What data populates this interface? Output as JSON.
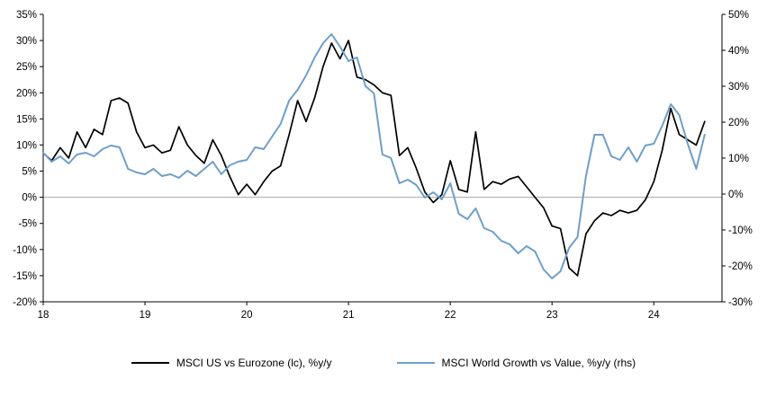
{
  "chart_data": {
    "type": "line",
    "title": "",
    "x_label": "",
    "grid": false,
    "legend_position": "bottom",
    "axis_color": "#000000",
    "zero_line_color": "#a6a6a6",
    "x_range": [
      2018,
      2024.67
    ],
    "x": [
      2018.0,
      2018.083,
      2018.167,
      2018.25,
      2018.333,
      2018.417,
      2018.5,
      2018.583,
      2018.667,
      2018.75,
      2018.833,
      2018.917,
      2019.0,
      2019.083,
      2019.167,
      2019.25,
      2019.333,
      2019.417,
      2019.5,
      2019.583,
      2019.667,
      2019.75,
      2019.833,
      2019.917,
      2020.0,
      2020.083,
      2020.167,
      2020.25,
      2020.333,
      2020.417,
      2020.5,
      2020.583,
      2020.667,
      2020.75,
      2020.833,
      2020.917,
      2021.0,
      2021.083,
      2021.167,
      2021.25,
      2021.333,
      2021.417,
      2021.5,
      2021.583,
      2021.667,
      2021.75,
      2021.833,
      2021.917,
      2022.0,
      2022.083,
      2022.167,
      2022.25,
      2022.333,
      2022.417,
      2022.5,
      2022.583,
      2022.667,
      2022.75,
      2022.833,
      2022.917,
      2023.0,
      2023.083,
      2023.167,
      2023.25,
      2023.333,
      2023.417,
      2023.5,
      2023.583,
      2023.667,
      2023.75,
      2023.833,
      2023.917,
      2024.0,
      2024.083,
      2024.167,
      2024.25,
      2024.333,
      2024.417,
      2024.5
    ],
    "series": [
      {
        "name": "MSCI US vs Eurozone (lc), %y/y",
        "axis": "left",
        "color": "#000000",
        "width": 1.7,
        "values": [
          8.5,
          7.0,
          9.5,
          7.5,
          12.5,
          9.5,
          13.0,
          12.0,
          18.5,
          19.0,
          18.0,
          12.5,
          9.5,
          10.0,
          8.5,
          9.0,
          13.5,
          10.0,
          8.0,
          6.5,
          11.0,
          8.0,
          4.0,
          0.5,
          2.5,
          0.5,
          3.0,
          5.0,
          6.0,
          12.0,
          18.5,
          14.5,
          19.0,
          25.0,
          29.5,
          26.5,
          30.0,
          23.0,
          22.5,
          21.5,
          20.0,
          19.5,
          8.0,
          9.5,
          5.5,
          1.0,
          -1.0,
          0.5,
          7.0,
          1.5,
          1.0,
          12.5,
          1.5,
          3.0,
          2.5,
          3.5,
          4.0,
          2.0,
          0.0,
          -2.0,
          -5.5,
          -6.0,
          -13.5,
          -15.0,
          -7.0,
          -4.5,
          -3.0,
          -3.5,
          -2.5,
          -3.0,
          -2.5,
          -0.5,
          3.0,
          9.0,
          17.0,
          12.0,
          11.0,
          10.0,
          14.5
        ]
      },
      {
        "name": "MSCI World Growth vs Value, %y/y (rhs)",
        "axis": "right",
        "color": "#6f9fc8",
        "width": 2.0,
        "values": [
          11.5,
          9.0,
          10.5,
          8.5,
          11.0,
          11.5,
          10.5,
          12.5,
          13.5,
          13.0,
          7.0,
          6.0,
          5.5,
          7.0,
          5.0,
          5.5,
          4.5,
          6.5,
          5.0,
          7.0,
          9.0,
          5.5,
          8.0,
          9.0,
          9.5,
          13.0,
          12.5,
          16.0,
          19.5,
          26.0,
          29.0,
          33.0,
          38.0,
          42.0,
          44.5,
          41.0,
          37.0,
          38.0,
          30.0,
          28.0,
          11.0,
          10.0,
          3.0,
          4.0,
          2.5,
          -1.0,
          0.5,
          -1.5,
          3.0,
          -5.5,
          -7.0,
          -4.0,
          -9.5,
          -10.5,
          -13.0,
          -14.0,
          -16.5,
          -14.5,
          -16.0,
          -21.0,
          -23.5,
          -21.5,
          -15.0,
          -12.0,
          5.0,
          16.5,
          16.5,
          10.5,
          9.5,
          13.0,
          9.0,
          13.5,
          14.0,
          19.0,
          25.0,
          22.0,
          14.0,
          7.0,
          16.5
        ]
      }
    ],
    "left_axis": {
      "min": -20,
      "max": 35,
      "step": 5,
      "ticks": [
        35,
        30,
        25,
        20,
        15,
        10,
        5,
        0,
        -5,
        -10,
        -15,
        -20
      ],
      "labels": [
        "35%",
        "30%",
        "25%",
        "20%",
        "15%",
        "10%",
        "5%",
        "0%",
        "-5%",
        "-10%",
        "-15%",
        "-20%"
      ]
    },
    "right_axis": {
      "min": -30,
      "max": 50,
      "step": 10,
      "ticks": [
        50,
        40,
        30,
        20,
        10,
        0,
        -10,
        -20,
        -30
      ],
      "labels": [
        "50%",
        "40%",
        "30%",
        "20%",
        "10%",
        "0%",
        "-10%",
        "-20%",
        "-30%"
      ]
    },
    "x_axis": {
      "values": [
        2018,
        2019,
        2020,
        2021,
        2022,
        2023,
        2024
      ],
      "labels": [
        "18",
        "19",
        "20",
        "21",
        "22",
        "23",
        "24"
      ]
    }
  }
}
